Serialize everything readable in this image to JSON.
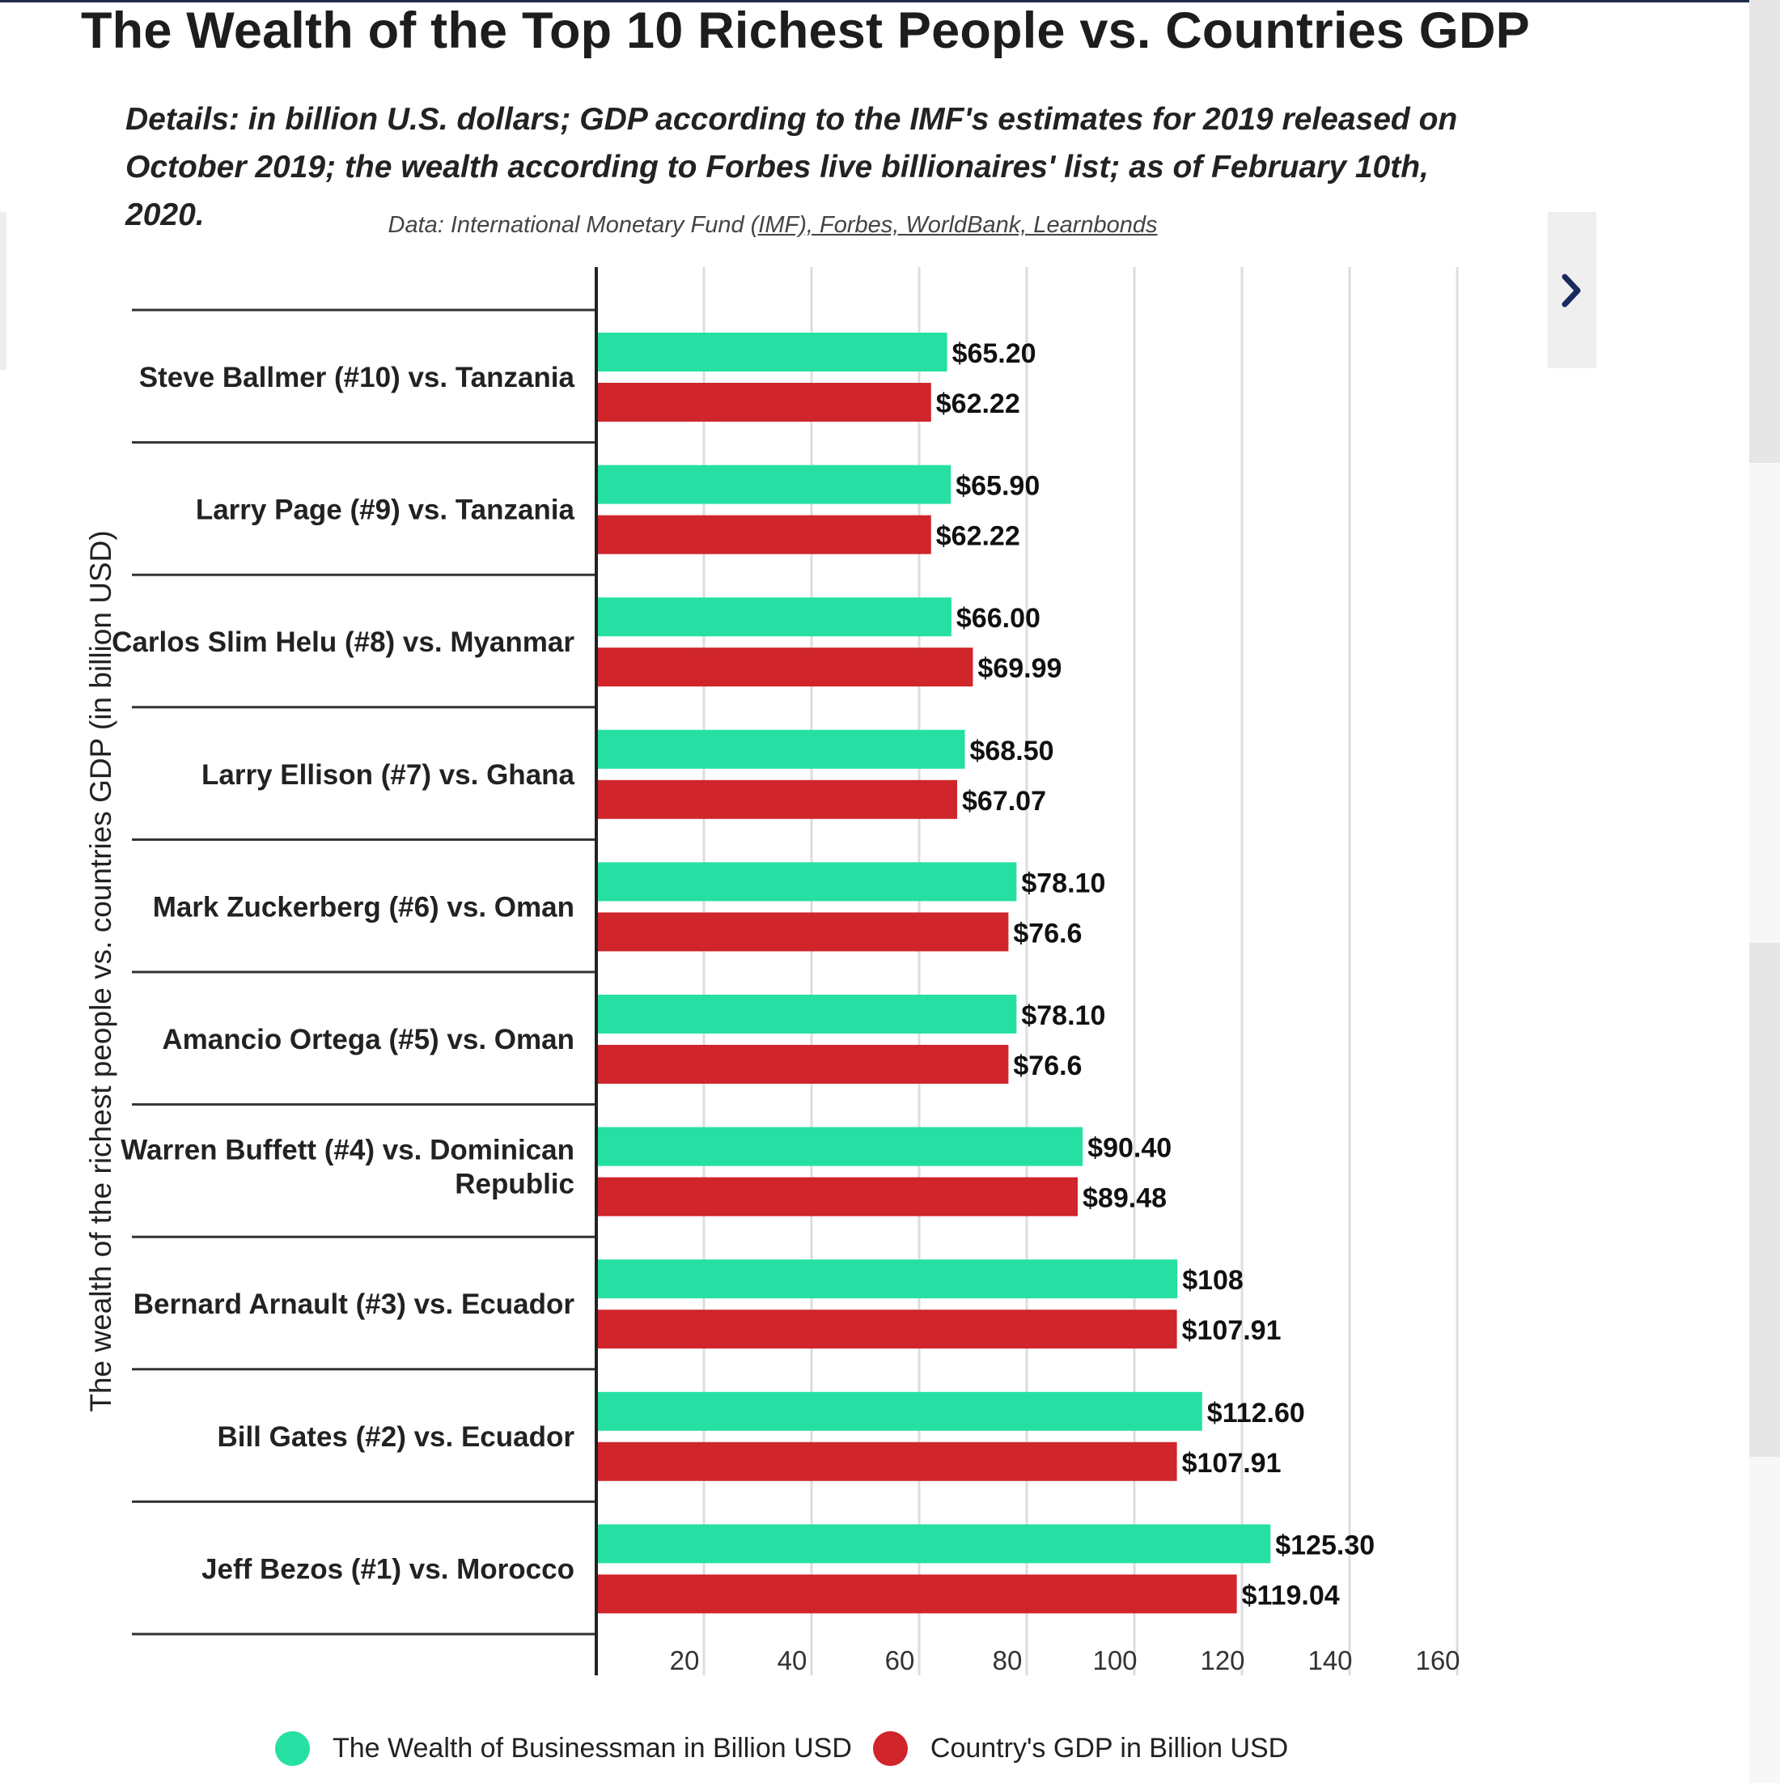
{
  "header": {
    "title": "The Wealth of the Top 10 Richest People vs. Countries GDP",
    "subtitle": "Details: in billion U.S. dollars; GDP according to the IMF's estimates for 2019 released on October 2019; the wealth according to Forbes live billionaires' list; as of February 10th, 2020.",
    "source_prefix": "Data: International Monetary Fund ",
    "source_links": "(IMF), Forbes, WorldBank, Learnbonds"
  },
  "icons": {
    "next": "chevron-right-icon"
  },
  "colors": {
    "wealth": "#26e0a3",
    "gdp": "#cf252b",
    "next_icon": "#1a2a5e"
  },
  "chart_data": {
    "type": "bar",
    "orientation": "horizontal",
    "ylabel": "The wealth of the richest people vs. countries GDP (in billion USD)",
    "xlim": [
      0,
      165
    ],
    "xticks": [
      20,
      40,
      60,
      80,
      100,
      120,
      140,
      160
    ],
    "categories": [
      "Steve Ballmer (#10) vs. Tanzania",
      "Larry Page (#9) vs. Tanzania",
      "Carlos Slim Helu (#8) vs. Myanmar",
      "Larry Ellison (#7) vs. Ghana",
      "Mark Zuckerberg (#6) vs. Oman",
      "Amancio Ortega (#5) vs. Oman",
      "Warren Buffett (#4) vs. Dominican Republic",
      "Bernard Arnault (#3) vs. Ecuador",
      "Bill Gates (#2) vs. Ecuador",
      "Jeff Bezos (#1) vs. Morocco"
    ],
    "series": [
      {
        "name": "The Wealth of Businessman in Billion USD",
        "values": [
          65.2,
          65.9,
          66.0,
          68.5,
          78.1,
          78.1,
          90.4,
          108,
          112.6,
          125.3
        ],
        "labels": [
          "$65.20",
          "$65.90",
          "$66.00",
          "$68.50",
          "$78.10",
          "$78.10",
          "$90.40",
          "$108",
          "$112.60",
          "$125.30"
        ]
      },
      {
        "name": "Country's GDP in Billion USD",
        "values": [
          62.22,
          62.22,
          69.99,
          67.07,
          76.6,
          76.6,
          89.48,
          107.91,
          107.91,
          119.04
        ],
        "labels": [
          "$62.22",
          "$62.22",
          "$69.99",
          "$67.07",
          "$76.6",
          "$76.6",
          "$89.48",
          "$107.91",
          "$107.91",
          "$119.04"
        ]
      }
    ],
    "legend": "bottom"
  }
}
